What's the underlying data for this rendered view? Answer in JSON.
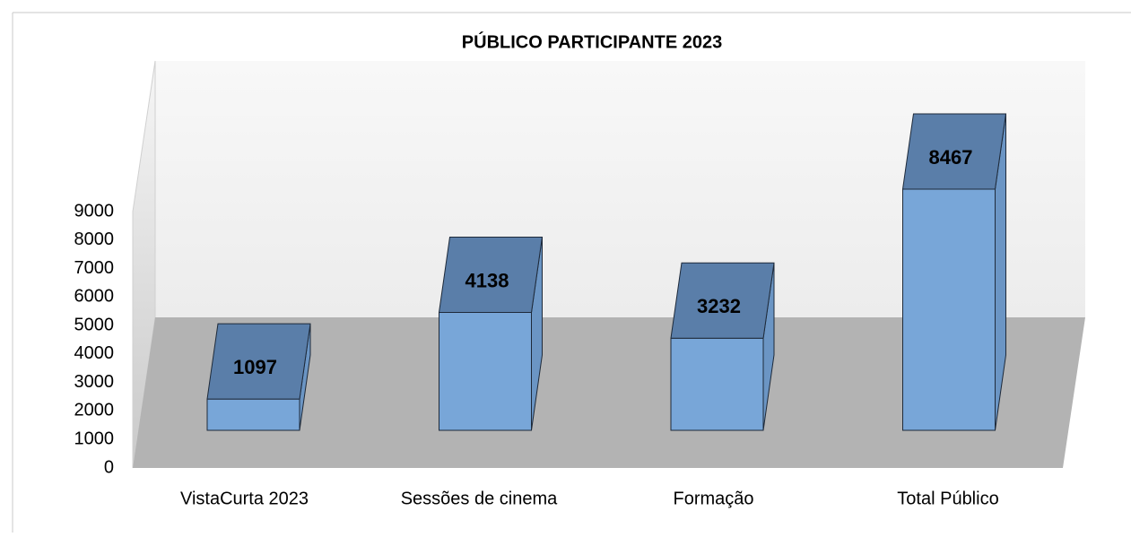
{
  "chart_data": {
    "type": "bar3d",
    "title": "PÚBLICO PARTICIPANTE 2023",
    "categories": [
      "VistaCurta 2023",
      "Sessões de cinema",
      "Formação",
      "Total Público"
    ],
    "values": [
      1097,
      4138,
      3232,
      8467
    ],
    "color": "#78a6d8",
    "ylim": [
      0,
      9000
    ],
    "yticks": [
      0,
      1000,
      2000,
      3000,
      4000,
      5000,
      6000,
      7000,
      8000,
      9000
    ],
    "grid": false
  }
}
